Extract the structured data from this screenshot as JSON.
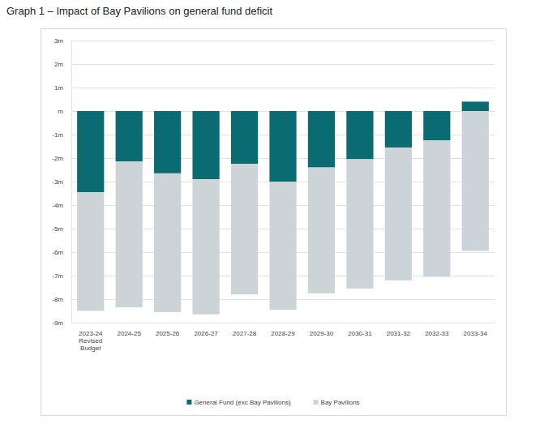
{
  "chart_data": {
    "type": "bar",
    "stacked": true,
    "title": "Graph 1 – Impact of Bay Pavilions on general fund deficit",
    "categories": [
      "2023-24 Revised Budget",
      "2024-25",
      "2025-26",
      "2026-27",
      "2027-28",
      "2028-29",
      "2029-30",
      "2030-31",
      "2031-32",
      "2032-33",
      "2033-34"
    ],
    "series": [
      {
        "name": "General Fund (exc Bay Pavilions)",
        "color": "#0b6b72",
        "values": [
          -3.45,
          -2.15,
          -2.65,
          -2.9,
          -2.25,
          -3.0,
          -2.4,
          -2.05,
          -1.55,
          -1.25,
          0.4
        ]
      },
      {
        "name": "Bay Pavilions",
        "color": "#cdd4d7",
        "values": [
          -5.05,
          -6.2,
          -5.9,
          -5.75,
          -5.55,
          -5.45,
          -5.35,
          -5.5,
          -5.65,
          -5.8,
          -5.95
        ]
      }
    ],
    "ylim": [
      -9,
      3
    ],
    "yticks": [
      {
        "value": 3,
        "label": "3m"
      },
      {
        "value": 2,
        "label": "2m"
      },
      {
        "value": 1,
        "label": "1m"
      },
      {
        "value": 0,
        "label": "m"
      },
      {
        "value": -1,
        "label": "-1m"
      },
      {
        "value": -2,
        "label": "-2m"
      },
      {
        "value": -3,
        "label": "-3m"
      },
      {
        "value": -4,
        "label": "-4m"
      },
      {
        "value": -5,
        "label": "-5m"
      },
      {
        "value": -6,
        "label": "-6m"
      },
      {
        "value": -7,
        "label": "-7m"
      },
      {
        "value": -8,
        "label": "-8m"
      },
      {
        "value": -9,
        "label": "-9m"
      }
    ],
    "grid": true,
    "legend": "bottom"
  }
}
